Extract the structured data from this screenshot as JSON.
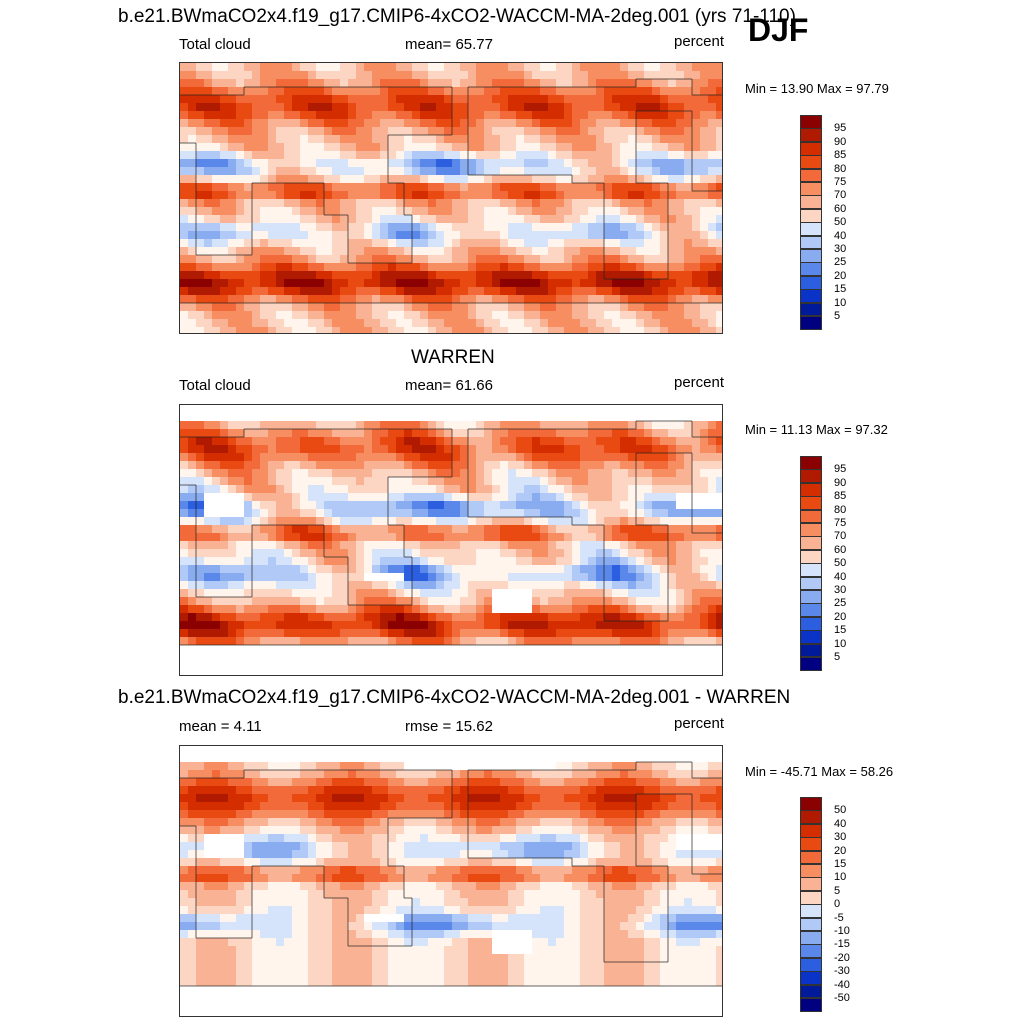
{
  "figure": {
    "title": "b.e21.BWmaCO2x4.f19_g17.CMIP6-4xCO2-WACCM-MA-2deg.001 (yrs 71-110)",
    "season": "DJF"
  },
  "panels": [
    {
      "title": "",
      "variable": "Total cloud",
      "stat": "mean=  65.77",
      "units": "percent",
      "minmax": "Min =  13.90 Max =  97.79",
      "colorbar_labels": [
        "95",
        "90",
        "85",
        "80",
        "75",
        "70",
        "60",
        "50",
        "40",
        "30",
        "25",
        "20",
        "15",
        "10",
        "5"
      ]
    },
    {
      "title": "WARREN",
      "variable": "Total cloud",
      "stat": "mean=  61.66",
      "units": "percent",
      "minmax": "Min =  11.13 Max =  97.32",
      "colorbar_labels": [
        "95",
        "90",
        "85",
        "80",
        "75",
        "70",
        "60",
        "50",
        "40",
        "30",
        "25",
        "20",
        "15",
        "10",
        "5"
      ]
    },
    {
      "title": "b.e21.BWmaCO2x4.f19_g17.CMIP6-4xCO2-WACCM-MA-2deg.001 - WARREN",
      "variable": "mean =   4.11",
      "stat": "rmse =  15.62",
      "units": "percent",
      "minmax": "Min = -45.71 Max =  58.26",
      "colorbar_labels": [
        "50",
        "40",
        "30",
        "20",
        "15",
        "10",
        "5",
        "0",
        "-5",
        "-10",
        "-15",
        "-20",
        "-30",
        "-40",
        "-50"
      ]
    }
  ],
  "colors": {
    "scale": [
      "#8b0000",
      "#b01a00",
      "#d42e00",
      "#e84a12",
      "#f26a3a",
      "#f68e62",
      "#f9b394",
      "#fcd6c2",
      "#fff5ec",
      "#d6e4fb",
      "#b0c9f6",
      "#89acf1",
      "#5a87ea",
      "#2c5ee0",
      "#0a33c8",
      "#001a9a",
      "#000080"
    ]
  }
}
